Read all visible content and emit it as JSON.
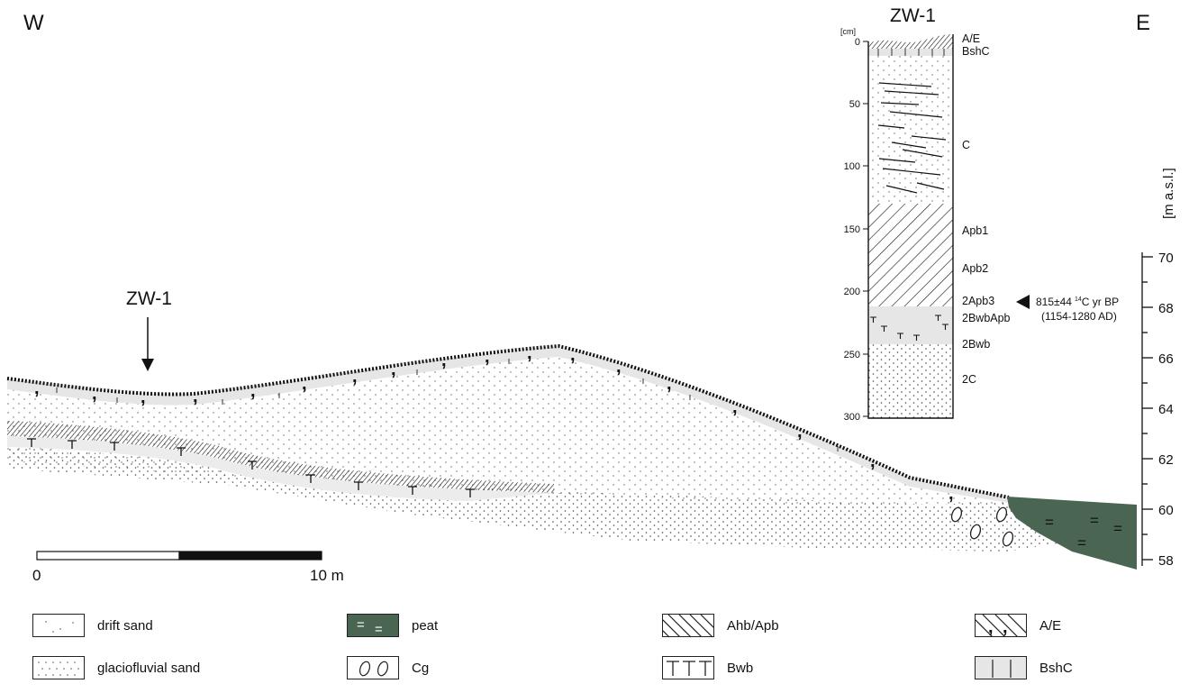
{
  "direction": {
    "west": "W",
    "east": "E"
  },
  "profile_marker": {
    "label": "ZW-1"
  },
  "column": {
    "title": "ZW-1",
    "depth_unit": "[cm]",
    "depth_ticks": [
      "0",
      "50",
      "100",
      "150",
      "200",
      "250",
      "300"
    ],
    "horizons": [
      "A/E",
      "BshC",
      "C",
      "Apb1",
      "Apb2",
      "2Apb3",
      "2BwbApb",
      "2Bwb",
      "2C"
    ],
    "date_line1_value": "815±44",
    "date_line1_super": "14",
    "date_line1_unit": "C yr BP",
    "date_line2": "(1154-1280 AD)"
  },
  "elevation_axis": {
    "label": "[m a.s.l.]",
    "ticks": [
      "70",
      "68",
      "66",
      "64",
      "62",
      "60",
      "58"
    ]
  },
  "scale_bar": {
    "start": "0",
    "end": "10 m"
  },
  "legend": [
    {
      "label": "drift sand",
      "pattern": "drift-sand"
    },
    {
      "label": "peat",
      "pattern": "peat"
    },
    {
      "label": "Ahb/Apb",
      "pattern": "hatch"
    },
    {
      "label": "A/E",
      "pattern": "ae"
    },
    {
      "label": "glaciofluvial sand",
      "pattern": "glacio-sand"
    },
    {
      "label": "Cg",
      "pattern": "cg"
    },
    {
      "label": "Bwb",
      "pattern": "bwb"
    },
    {
      "label": "BshC",
      "pattern": "bshc"
    }
  ],
  "colors": {
    "peat": "#4a6652",
    "bleached": "#e6e6e6",
    "ink": "#111111"
  }
}
